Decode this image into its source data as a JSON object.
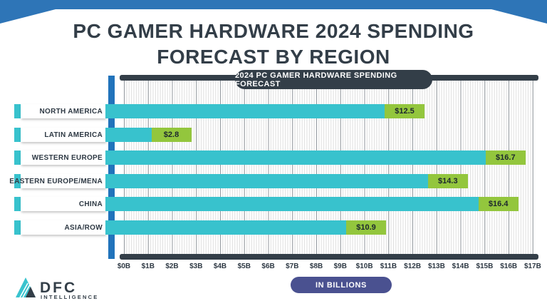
{
  "title": {
    "line1": "PC GAMER HARDWARE 2024 SPENDING",
    "line2": "FORECAST BY REGION"
  },
  "chart_header": "2024 PC GAMER HARDWARE SPENDING FORECAST",
  "axis_note": "IN BILLIONS",
  "chart_data": {
    "type": "bar",
    "orientation": "horizontal",
    "title": "2024 PC GAMER HARDWARE SPENDING FORECAST",
    "categories": [
      "NORTH AMERICA",
      "LATIN AMERICA",
      "WESTERN EUROPE",
      "EASTERN EUROPE/MENA",
      "CHINA",
      "ASIA/ROW"
    ],
    "values": [
      12.5,
      2.8,
      16.7,
      14.3,
      16.4,
      10.9
    ],
    "value_labels": [
      "$12.5",
      "$2.8",
      "$16.7",
      "$14.3",
      "$16.4",
      "$10.9"
    ],
    "x_tick_labels": [
      "$0B",
      "$1B",
      "$2B",
      "$3B",
      "$4B",
      "$5B",
      "$6B",
      "$7B",
      "$8B",
      "$9B",
      "$10B",
      "$11B",
      "$12B",
      "$13B",
      "$14B",
      "$15B",
      "$16B",
      "$17B"
    ],
    "xlabel": "IN BILLIONS",
    "xlim": [
      0,
      17
    ],
    "grid": true,
    "legend": false,
    "unit": "USD billions"
  },
  "logo": {
    "name": "DFC",
    "subtitle": "INTELLIGENCE"
  },
  "colors": {
    "banner_blue": "#2e75b7",
    "axis_blue": "#2173bb",
    "bar_teal": "#38c2cd",
    "value_green": "#93c63d",
    "charcoal": "#333e48",
    "unit_pill_indigo": "#4a5190"
  }
}
